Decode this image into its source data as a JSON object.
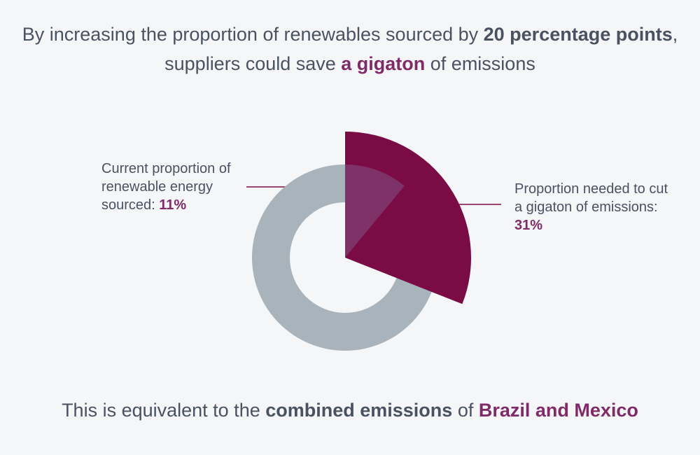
{
  "headline": {
    "part1": "By increasing the proportion of renewables sourced by ",
    "bold1": "20 percentage points",
    "part2": ", suppliers could save ",
    "accent": "a gigaton",
    "part3": " of emissions"
  },
  "labels": {
    "current_text": "Current proportion of renewable energy sourced: ",
    "current_pct": "11%",
    "needed_text": "Proportion needed to cut a gigaton of emissions: ",
    "needed_pct": "31%"
  },
  "footer": {
    "part1": "This is equivalent to the ",
    "bold": "combined emissions",
    "part2": " of ",
    "accent": "Brazil and Mexico"
  },
  "chart_data": {
    "type": "pie",
    "slices": [
      {
        "label": "Current proportion of renewable energy sourced",
        "value": 11,
        "color": "#7f3267"
      },
      {
        "label": "Proportion needed to cut a gigaton of emissions",
        "value": 31,
        "color": "#7a0b45"
      }
    ],
    "base_color": "#a9b3bc"
  }
}
